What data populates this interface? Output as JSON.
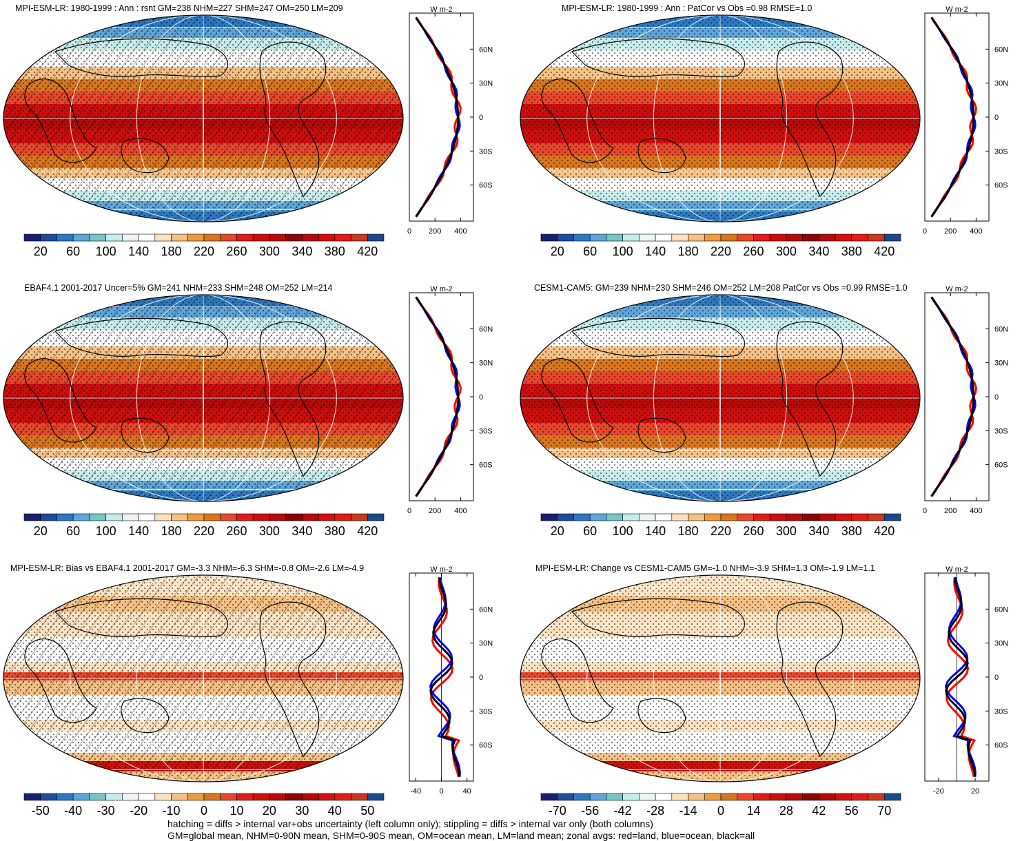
{
  "panels": [
    {
      "title": "MPI-ESM-LR: 1980-1999 : Ann : rsnt GM=238 NHM=227 SHM=247 OM=250 LM=209",
      "scheme": "abs",
      "hatch": true,
      "colorbar_labels": [
        "20",
        "60",
        "100",
        "140",
        "180",
        "220",
        "260",
        "300",
        "340",
        "380",
        "420"
      ],
      "zonal": {
        "units": "W m-2",
        "xticks": [
          "0",
          "200",
          "400"
        ],
        "xlim": [
          0,
          500
        ],
        "yticks": [
          "60N",
          "30N",
          "0",
          "30S",
          "60S"
        ]
      }
    },
    {
      "title": "MPI-ESM-LR: 1980-1999 : Ann : PatCor vs Obs =0.98 RMSE=1.0",
      "scheme": "abs",
      "hatch": false,
      "colorbar_labels": [
        "20",
        "60",
        "100",
        "140",
        "180",
        "220",
        "260",
        "300",
        "340",
        "380",
        "420"
      ],
      "zonal": {
        "units": "W m-2",
        "xticks": [
          "0",
          "200",
          "400"
        ],
        "xlim": [
          0,
          500
        ],
        "yticks": [
          "60N",
          "30N",
          "0",
          "30S",
          "60S"
        ]
      }
    },
    {
      "title": "EBAF4.1 2001-2017 Uncer=5% GM=241 NHM=233 SHM=248 OM=252 LM=214",
      "scheme": "abs",
      "hatch": true,
      "colorbar_labels": [
        "20",
        "60",
        "100",
        "140",
        "180",
        "220",
        "260",
        "300",
        "340",
        "380",
        "420"
      ],
      "zonal": {
        "units": "W m-2",
        "xticks": [
          "0",
          "200",
          "400"
        ],
        "xlim": [
          0,
          500
        ],
        "yticks": [
          "60N",
          "30N",
          "0",
          "30S",
          "60S"
        ]
      }
    },
    {
      "title": "CESM1-CAM5: GM=239 NHM=230 SHM=246 OM=252 LM=208 PatCor vs Obs =0.99 RMSE=1.0",
      "scheme": "abs",
      "hatch": false,
      "colorbar_labels": [
        "20",
        "60",
        "100",
        "140",
        "180",
        "220",
        "260",
        "300",
        "340",
        "380",
        "420"
      ],
      "zonal": {
        "units": "W m-2",
        "xticks": [
          "0",
          "200",
          "400"
        ],
        "xlim": [
          0,
          500
        ],
        "yticks": [
          "60N",
          "30N",
          "0",
          "30S",
          "60S"
        ]
      }
    },
    {
      "title": "MPI-ESM-LR: Bias vs EBAF4.1 2001-2017 GM=-3.3 NHM=-6.3 SHM=-0.8 OM=-2.6 LM=-4.9",
      "scheme": "diff",
      "hatch": true,
      "colorbar_labels": [
        "-50",
        "-40",
        "-30",
        "-20",
        "-10",
        "0",
        "10",
        "20",
        "30",
        "40",
        "50"
      ],
      "zonal": {
        "units": "W m-2",
        "xticks": [
          "-40",
          "0",
          "40"
        ],
        "xlim": [
          -50,
          50
        ],
        "yticks": [
          "60N",
          "30N",
          "0",
          "30S",
          "60S"
        ]
      }
    },
    {
      "title": "MPI-ESM-LR: Change vs CESM1-CAM5 GM=-1.0 NHM=-3.9 SHM=1.3 OM=-1.9 LM=1.1",
      "scheme": "diff",
      "hatch": false,
      "colorbar_labels": [
        "-70",
        "-56",
        "-42",
        "-28",
        "-14",
        "0",
        "14",
        "28",
        "42",
        "56",
        "70"
      ],
      "zonal": {
        "units": "W m-2",
        "xticks": [
          "-20",
          "20"
        ],
        "xlim": [
          -35,
          35
        ],
        "yticks": [
          "60N",
          "30N",
          "0",
          "30S",
          "60S"
        ]
      }
    }
  ],
  "colorbar_colors": [
    "#1c1f6e",
    "#1f4c9c",
    "#2d79c0",
    "#5fa5da",
    "#79c4c4",
    "#c5eded",
    "#eef5f7",
    "#ffffff",
    "#fbe3c2",
    "#f6c184",
    "#ec9c3e",
    "#d9761d",
    "#e8472b",
    "#e31a1c",
    "#d00d0d",
    "#b80808",
    "#8a0606",
    "#b30b0b",
    "#d40f0f",
    "#e41a1a",
    "#c9381f",
    "#1a4a8a"
  ],
  "series_colors": {
    "land": "#ff0000",
    "ocean": "#0000ff",
    "all": "#000000"
  },
  "footer": {
    "line1": "hatching = diffs > internal var+obs uncertainty (left column only); stippling = diffs > internal var only (both columns)",
    "line2": "GM=global mean, NHM=0-90N mean, SHM=0-90S mean, OM=ocean mean, LM=land mean; zonal avgs: red=land, blue=ocean, black=all"
  }
}
